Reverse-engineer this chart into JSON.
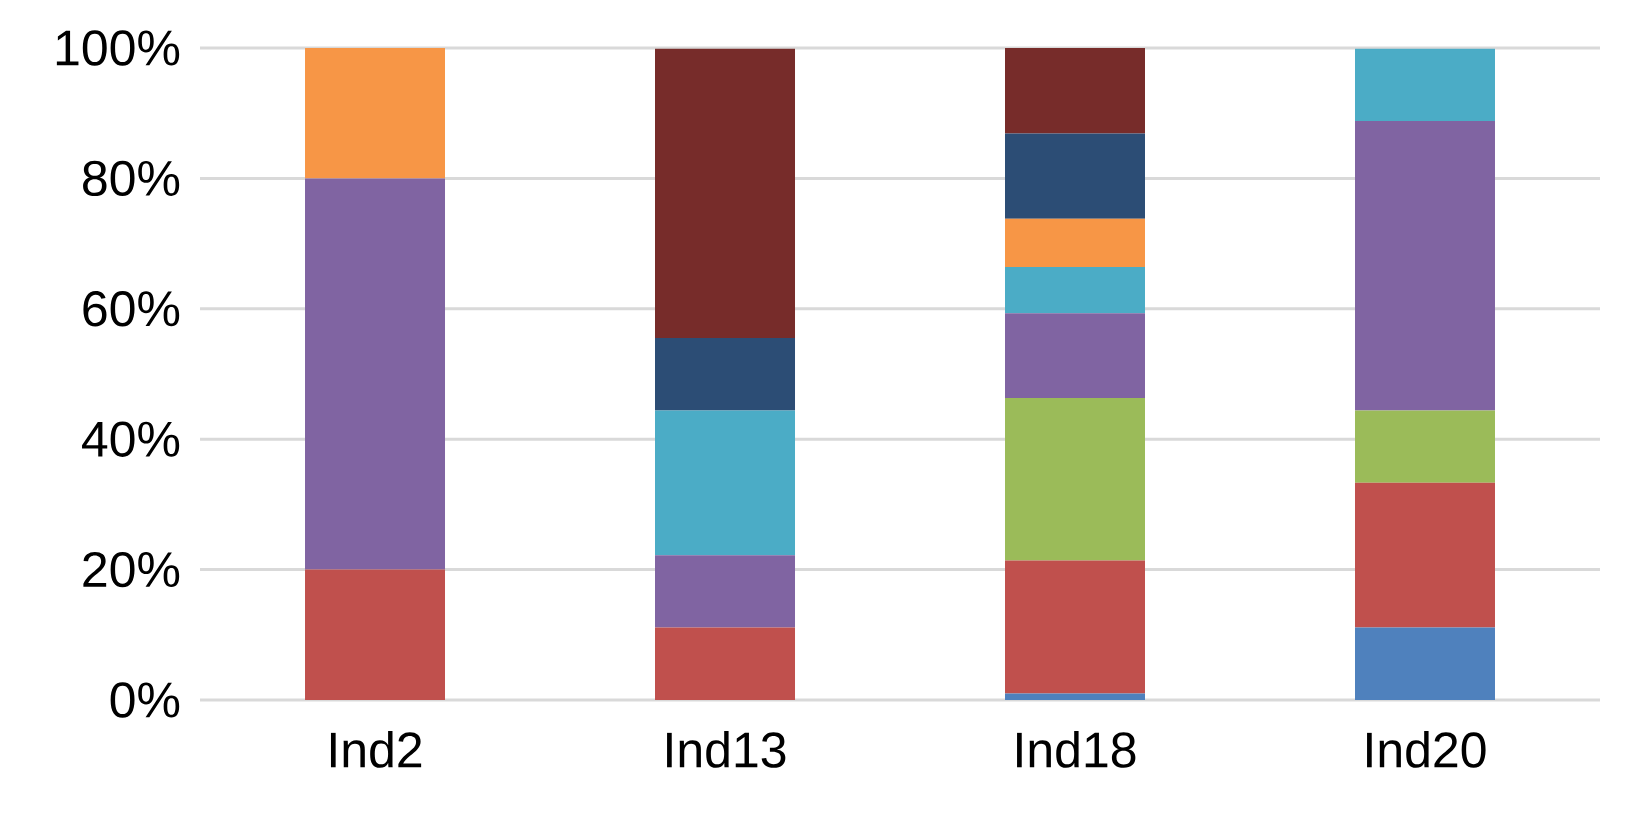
{
  "chart_data": {
    "type": "bar",
    "stacked": true,
    "categories": [
      "Ind2",
      "Ind13",
      "Ind18",
      "Ind20"
    ],
    "series": [
      {
        "color": "#4f81bd",
        "values": [
          null,
          null,
          1,
          11.1
        ]
      },
      {
        "color": "#c0504d",
        "values": [
          20,
          11.1,
          20.4,
          22.2
        ]
      },
      {
        "color": "#9bbb59",
        "values": [
          null,
          null,
          24.9,
          11.1
        ]
      },
      {
        "color": "#8064a2",
        "values": [
          60,
          11.1,
          13,
          44.4
        ]
      },
      {
        "color": "#4bacc6",
        "values": [
          null,
          22.2,
          7.1,
          11.1
        ]
      },
      {
        "color": "#f79646",
        "values": [
          20,
          null,
          7.4,
          null
        ]
      },
      {
        "color": "#2c4d75",
        "values": [
          null,
          11.1,
          13.1,
          null
        ]
      },
      {
        "color": "#772c2a",
        "values": [
          null,
          44.4,
          13.1,
          null
        ]
      }
    ],
    "ylim": [
      0,
      100
    ],
    "yticks": [
      {
        "value": 0,
        "label": "0%"
      },
      {
        "value": 20,
        "label": "20%"
      },
      {
        "value": 40,
        "label": "40%"
      },
      {
        "value": 60,
        "label": "60%"
      },
      {
        "value": 80,
        "label": "80%"
      },
      {
        "value": 100,
        "label": "100%"
      }
    ],
    "grid": "y"
  }
}
